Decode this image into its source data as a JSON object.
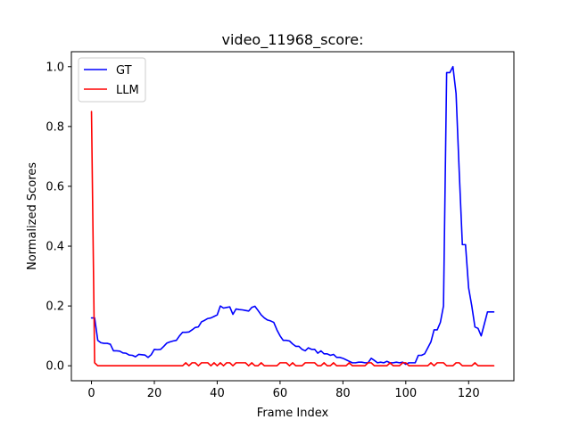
{
  "chart_data": {
    "type": "line",
    "title": "video_11968_score:",
    "xlabel": "Frame Index",
    "ylabel": "Normalized Scores",
    "xlim": [
      -6.4,
      134.4
    ],
    "ylim": [
      -0.05,
      1.05
    ],
    "xticks": [
      0,
      20,
      40,
      60,
      80,
      100,
      120
    ],
    "yticks": [
      0.0,
      0.2,
      0.4,
      0.6,
      0.8,
      1.0
    ],
    "xtick_labels": [
      "0",
      "20",
      "40",
      "60",
      "80",
      "100",
      "120"
    ],
    "ytick_labels": [
      "0.0",
      "0.2",
      "0.4",
      "0.6",
      "0.8",
      "1.0"
    ],
    "grid": false,
    "legend_position": "top-left",
    "series": [
      {
        "name": "GT",
        "color": "#0000ff",
        "x": [
          0,
          1,
          2,
          3,
          4,
          5,
          6,
          7,
          8,
          9,
          10,
          11,
          12,
          13,
          14,
          15,
          16,
          17,
          18,
          19,
          20,
          21,
          22,
          23,
          24,
          25,
          26,
          27,
          28,
          29,
          30,
          31,
          32,
          33,
          34,
          35,
          36,
          37,
          38,
          39,
          40,
          41,
          42,
          43,
          44,
          45,
          46,
          47,
          48,
          49,
          50,
          51,
          52,
          53,
          54,
          55,
          56,
          57,
          58,
          59,
          60,
          61,
          62,
          63,
          64,
          65,
          66,
          67,
          68,
          69,
          70,
          71,
          72,
          73,
          74,
          75,
          76,
          77,
          78,
          79,
          80,
          81,
          82,
          83,
          84,
          85,
          86,
          87,
          88,
          89,
          90,
          91,
          92,
          93,
          94,
          95,
          96,
          97,
          98,
          99,
          100,
          101,
          102,
          103,
          104,
          105,
          106,
          107,
          108,
          109,
          110,
          111,
          112,
          113,
          114,
          115,
          116,
          117,
          118,
          119,
          120,
          121,
          122,
          123,
          124,
          125,
          126,
          127,
          128
        ],
        "values": [
          0.16,
          0.16,
          0.085,
          0.077,
          0.075,
          0.075,
          0.072,
          0.05,
          0.05,
          0.049,
          0.043,
          0.042,
          0.036,
          0.035,
          0.03,
          0.038,
          0.037,
          0.036,
          0.028,
          0.037,
          0.055,
          0.054,
          0.055,
          0.065,
          0.076,
          0.08,
          0.083,
          0.085,
          0.1,
          0.112,
          0.112,
          0.113,
          0.12,
          0.128,
          0.13,
          0.147,
          0.152,
          0.158,
          0.16,
          0.165,
          0.17,
          0.2,
          0.193,
          0.195,
          0.197,
          0.172,
          0.19,
          0.188,
          0.187,
          0.185,
          0.183,
          0.195,
          0.199,
          0.185,
          0.17,
          0.16,
          0.153,
          0.15,
          0.145,
          0.12,
          0.1,
          0.085,
          0.085,
          0.083,
          0.073,
          0.065,
          0.065,
          0.055,
          0.05,
          0.06,
          0.055,
          0.055,
          0.042,
          0.05,
          0.04,
          0.04,
          0.035,
          0.038,
          0.028,
          0.028,
          0.025,
          0.02,
          0.015,
          0.01,
          0.01,
          0.012,
          0.012,
          0.01,
          0.01,
          0.025,
          0.018,
          0.01,
          0.012,
          0.01,
          0.015,
          0.01,
          0.01,
          0.012,
          0.01,
          0.012,
          0.005,
          0.01,
          0.01,
          0.01,
          0.035,
          0.035,
          0.04,
          0.06,
          0.08,
          0.12,
          0.12,
          0.145,
          0.2,
          0.98,
          0.98,
          1.0,
          0.91,
          0.65,
          0.405,
          0.405,
          0.26,
          0.2,
          0.13,
          0.125,
          0.1,
          0.14,
          0.18,
          0.18,
          0.18
        ],
        "values_count_note": ""
      },
      {
        "name": "LLM",
        "color": "#ff0000",
        "x": [
          0,
          1,
          2,
          3,
          4,
          5,
          6,
          7,
          8,
          9,
          10,
          11,
          12,
          13,
          14,
          15,
          16,
          17,
          18,
          19,
          20,
          21,
          22,
          23,
          24,
          25,
          26,
          27,
          28,
          29,
          30,
          31,
          32,
          33,
          34,
          35,
          36,
          37,
          38,
          39,
          40,
          41,
          42,
          43,
          44,
          45,
          46,
          47,
          48,
          49,
          50,
          51,
          52,
          53,
          54,
          55,
          56,
          57,
          58,
          59,
          60,
          61,
          62,
          63,
          64,
          65,
          66,
          67,
          68,
          69,
          70,
          71,
          72,
          73,
          74,
          75,
          76,
          77,
          78,
          79,
          80,
          81,
          82,
          83,
          84,
          85,
          86,
          87,
          88,
          89,
          90,
          91,
          92,
          93,
          94,
          95,
          96,
          97,
          98,
          99,
          100,
          101,
          102,
          103,
          104,
          105,
          106,
          107,
          108,
          109,
          110,
          111,
          112,
          113,
          114,
          115,
          116,
          117,
          118,
          119,
          120,
          121,
          122,
          123,
          124,
          125,
          126,
          127,
          128
        ],
        "values": [
          0.85,
          0.01,
          0.0,
          0.0,
          0.0,
          0.0,
          0.0,
          0.0,
          0.0,
          0.0,
          0.0,
          0.0,
          0.0,
          0.0,
          0.0,
          0.0,
          0.0,
          0.0,
          0.0,
          0.0,
          0.0,
          0.0,
          0.0,
          0.0,
          0.0,
          0.0,
          0.0,
          0.0,
          0.0,
          0.0,
          0.01,
          0.0,
          0.01,
          0.01,
          0.0,
          0.01,
          0.01,
          0.01,
          0.0,
          0.01,
          0.0,
          0.01,
          0.0,
          0.01,
          0.01,
          0.0,
          0.01,
          0.01,
          0.01,
          0.01,
          0.0,
          0.01,
          0.0,
          0.0,
          0.01,
          0.0,
          0.0,
          0.0,
          0.0,
          0.0,
          0.01,
          0.01,
          0.01,
          0.0,
          0.01,
          0.0,
          0.0,
          0.0,
          0.01,
          0.01,
          0.01,
          0.01,
          0.0,
          0.0,
          0.01,
          0.0,
          0.0,
          0.01,
          0.0,
          0.0,
          0.0,
          0.0,
          0.01,
          0.0,
          0.0,
          0.0,
          0.0,
          0.0,
          0.01,
          0.01,
          0.0,
          0.0,
          0.0,
          0.0,
          0.0,
          0.01,
          0.0,
          0.0,
          0.0,
          0.01,
          0.01,
          0.0,
          0.0,
          0.0,
          0.0,
          0.0,
          0.0,
          0.0,
          0.01,
          0.0,
          0.01,
          0.01,
          0.01,
          0.0,
          0.0,
          0.0,
          0.01,
          0.01,
          0.0,
          0.0,
          0.0,
          0.0,
          0.01,
          0.0,
          0.0,
          0.0,
          0.0,
          0.0,
          0.0
        ]
      }
    ]
  }
}
